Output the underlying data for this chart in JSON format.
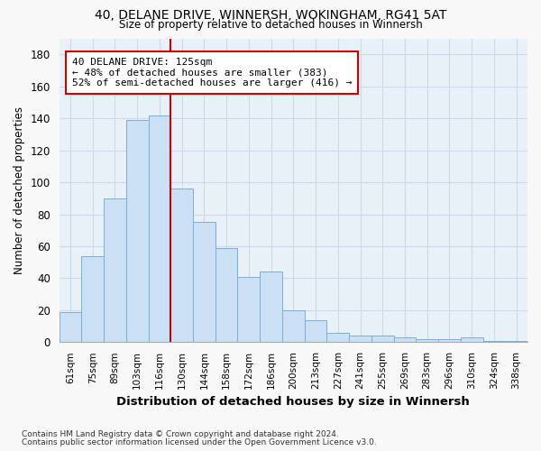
{
  "title1": "40, DELANE DRIVE, WINNERSH, WOKINGHAM, RG41 5AT",
  "title2": "Size of property relative to detached houses in Winnersh",
  "xlabel": "Distribution of detached houses by size in Winnersh",
  "ylabel": "Number of detached properties",
  "categories": [
    "61sqm",
    "75sqm",
    "89sqm",
    "103sqm",
    "116sqm",
    "130sqm",
    "144sqm",
    "158sqm",
    "172sqm",
    "186sqm",
    "200sqm",
    "213sqm",
    "227sqm",
    "241sqm",
    "255sqm",
    "269sqm",
    "283sqm",
    "296sqm",
    "310sqm",
    "324sqm",
    "338sqm"
  ],
  "values": [
    19,
    54,
    90,
    139,
    142,
    96,
    75,
    59,
    41,
    44,
    20,
    14,
    6,
    4,
    4,
    3,
    2,
    2,
    3,
    1,
    1
  ],
  "bar_color": "#cce0f5",
  "bar_edge_color": "#7bafd4",
  "vline_x": 5.0,
  "vline_color": "#cc0000",
  "annotation_line1": "40 DELANE DRIVE: 125sqm",
  "annotation_line2": "← 48% of detached houses are smaller (383)",
  "annotation_line3": "52% of semi-detached houses are larger (416) →",
  "annotation_box_edgecolor": "#cc0000",
  "ylim": [
    0,
    190
  ],
  "yticks": [
    0,
    20,
    40,
    60,
    80,
    100,
    120,
    140,
    160,
    180
  ],
  "footnote1": "Contains HM Land Registry data © Crown copyright and database right 2024.",
  "footnote2": "Contains public sector information licensed under the Open Government Licence v3.0.",
  "plot_bg_color": "#e8f0f8",
  "fig_bg_color": "#f8f8f8",
  "grid_color": "#d0d8e8"
}
